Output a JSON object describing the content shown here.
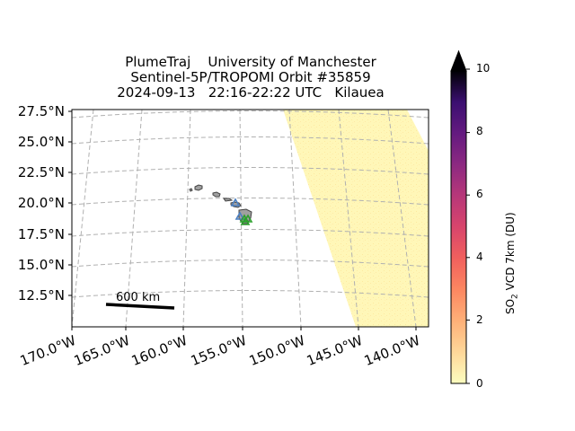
{
  "title": {
    "line1": "PlumeTraj    University of Manchester",
    "line2": "Sentinel-5P/TROPOMI Orbit #35859",
    "line3": "2024-09-13   22:16-22:22 UTC   Kilauea"
  },
  "map": {
    "lat_ticks": [
      "27.5°N",
      "25.0°N",
      "22.5°N",
      "20.0°N",
      "17.5°N",
      "15.0°N",
      "12.5°N"
    ],
    "lon_ticks": [
      "170.0°W",
      "165.0°W",
      "160.0°W",
      "155.0°W",
      "150.0°W",
      "145.0°W",
      "140.0°W"
    ],
    "gridlines": true,
    "scale_bar_label": "600 km",
    "volcano_markers": [
      {
        "name": "Kilauea",
        "lat": 19.4,
        "lon": -155.3,
        "color": "#2ca02c"
      },
      {
        "name": "Mauna Loa",
        "lat": 19.5,
        "lon": -155.6,
        "color": "#2ca02c"
      },
      {
        "name": "Hualalai",
        "lat": 19.7,
        "lon": -155.9,
        "color": "#4a7fc1"
      },
      {
        "name": "Haleakala",
        "lat": 20.7,
        "lon": -156.2,
        "color": "#4a7fc1"
      }
    ]
  },
  "colorbar": {
    "label_prefix": "SO",
    "label_sub": "2",
    "label_suffix": " VCD 7km (DU)",
    "ticks": [
      "0",
      "2",
      "4",
      "6",
      "8",
      "10"
    ],
    "min": 0,
    "max": 10,
    "colormap": "magma_r",
    "extend": "max"
  }
}
